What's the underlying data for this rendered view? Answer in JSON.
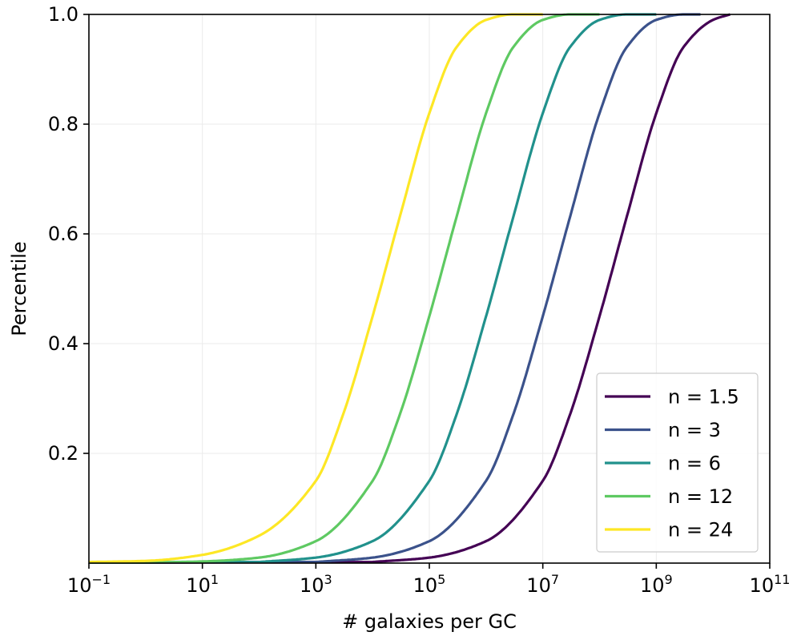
{
  "chart_data": {
    "type": "line",
    "title": "",
    "xlabel": "# galaxies per GC",
    "ylabel": "Percentile",
    "xscale": "log",
    "xlim": [
      0.1,
      100000000000
    ],
    "ylim": [
      0.0,
      1.0
    ],
    "grid": true,
    "legend_position": "lower-right",
    "x_ticks": [
      {
        "value": 0.1,
        "base": "10",
        "exp": "−1"
      },
      {
        "value": 10,
        "base": "10",
        "exp": "1"
      },
      {
        "value": 1000,
        "base": "10",
        "exp": "3"
      },
      {
        "value": 100000,
        "base": "10",
        "exp": "5"
      },
      {
        "value": 10000000,
        "base": "10",
        "exp": "7"
      },
      {
        "value": 1000000000,
        "base": "10",
        "exp": "9"
      },
      {
        "value": 100000000000,
        "base": "10",
        "exp": "11"
      }
    ],
    "y_ticks": [
      {
        "value": 0.2,
        "label": "0.2"
      },
      {
        "value": 0.4,
        "label": "0.4"
      },
      {
        "value": 0.6,
        "label": "0.6"
      },
      {
        "value": 0.8,
        "label": "0.8"
      },
      {
        "value": 1.0,
        "label": "1.0"
      }
    ],
    "series": [
      {
        "name": "n = 1.5",
        "color": "#440154",
        "x": [
          10000,
          100000,
          1000000,
          10000000,
          30000000,
          100000000,
          300000000,
          1000000000,
          3000000000,
          10000000000,
          20000000000
        ],
        "y": [
          0.002,
          0.01,
          0.04,
          0.15,
          0.27,
          0.45,
          0.63,
          0.82,
          0.94,
          0.99,
          1.0
        ]
      },
      {
        "name": "n = 3",
        "color": "#3b528b",
        "x": [
          1000,
          10000,
          100000,
          1000000,
          3000000,
          10000000,
          30000000,
          100000000,
          300000000,
          1000000000,
          3000000000,
          6000000000
        ],
        "y": [
          0.002,
          0.01,
          0.04,
          0.15,
          0.27,
          0.45,
          0.63,
          0.82,
          0.94,
          0.99,
          1.0,
          1.0
        ]
      },
      {
        "name": "n = 6",
        "color": "#21918c",
        "x": [
          100,
          1000,
          10000,
          100000,
          300000,
          1000000,
          3000000,
          10000000,
          30000000,
          100000000,
          300000000,
          1000000000
        ],
        "y": [
          0.002,
          0.01,
          0.04,
          0.15,
          0.27,
          0.45,
          0.63,
          0.82,
          0.94,
          0.99,
          1.0,
          1.0
        ]
      },
      {
        "name": "n = 12",
        "color": "#5ec962",
        "x": [
          1,
          10,
          100,
          1000,
          10000,
          30000,
          100000,
          300000,
          1000000,
          3000000,
          10000000,
          30000000,
          100000000
        ],
        "y": [
          0.001,
          0.003,
          0.01,
          0.04,
          0.15,
          0.27,
          0.45,
          0.63,
          0.82,
          0.94,
          0.99,
          1.0,
          1.0
        ]
      },
      {
        "name": "n = 24",
        "color": "#fde725",
        "x": [
          0.1,
          1,
          10,
          100,
          1000,
          3000,
          10000,
          30000,
          100000,
          300000,
          1000000,
          3000000,
          10000000
        ],
        "y": [
          0.002,
          0.004,
          0.015,
          0.05,
          0.15,
          0.27,
          0.45,
          0.63,
          0.82,
          0.94,
          0.99,
          1.0,
          1.0
        ]
      }
    ]
  }
}
